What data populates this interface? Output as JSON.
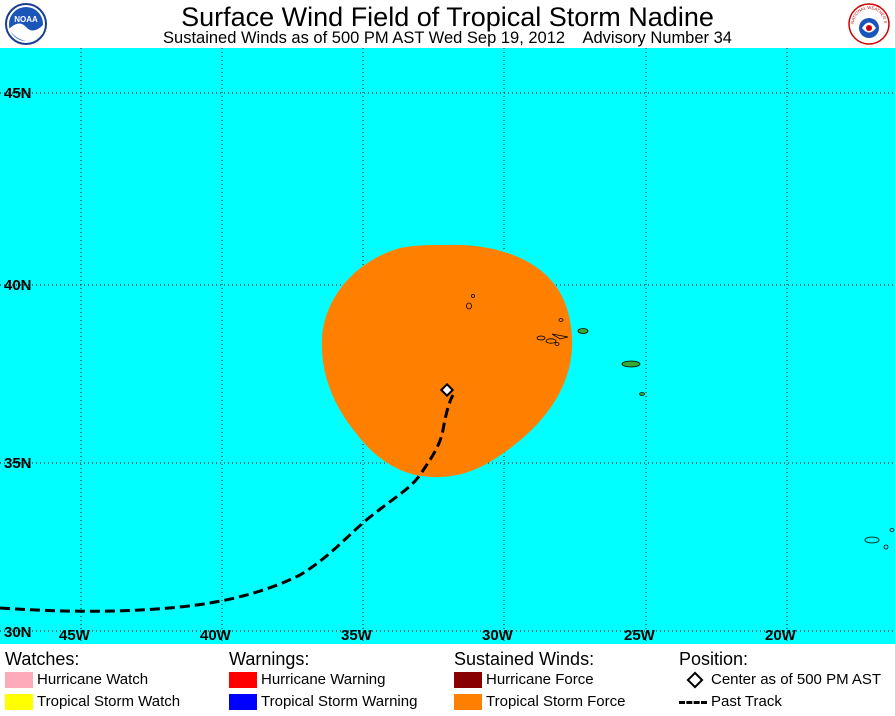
{
  "header": {
    "title": "Surface Wind Field of Tropical Storm Nadine",
    "subtitle": "Sustained Winds as of 500 PM AST Wed Sep 19, 2012    Advisory Number 34",
    "logo_left_text": "NOAA",
    "logo_right_text": "NATIONAL WEATHER SERVICE"
  },
  "map": {
    "lat_labels": [
      "45N",
      "40N",
      "35N",
      "30N"
    ],
    "lon_labels": [
      "45W",
      "40W",
      "35W",
      "30W",
      "25W",
      "20W"
    ],
    "colors": {
      "ocean": "#00ffff",
      "tropical_storm_force": "#ff8000",
      "land": "#33aa33",
      "gridline": "#000000"
    }
  },
  "legend": {
    "watches": {
      "heading": "Watches:",
      "items": [
        {
          "label": "Hurricane Watch",
          "color": "#ffaabb"
        },
        {
          "label": "Tropical Storm Watch",
          "color": "#ffff00"
        }
      ]
    },
    "warnings": {
      "heading": "Warnings:",
      "items": [
        {
          "label": "Hurricane Warning",
          "color": "#ff0000"
        },
        {
          "label": "Tropical Storm Warning",
          "color": "#0000ff"
        }
      ]
    },
    "winds": {
      "heading": "Sustained Winds:",
      "items": [
        {
          "label": "Hurricane Force",
          "color": "#880000"
        },
        {
          "label": "Tropical Storm Force",
          "color": "#ff8000"
        }
      ]
    },
    "position": {
      "heading": "Position:",
      "items": [
        {
          "label": "Center as of 500 PM AST",
          "icon": "diamond-icon"
        },
        {
          "label": "Past Track",
          "icon": "dashed-line-icon"
        }
      ]
    }
  }
}
